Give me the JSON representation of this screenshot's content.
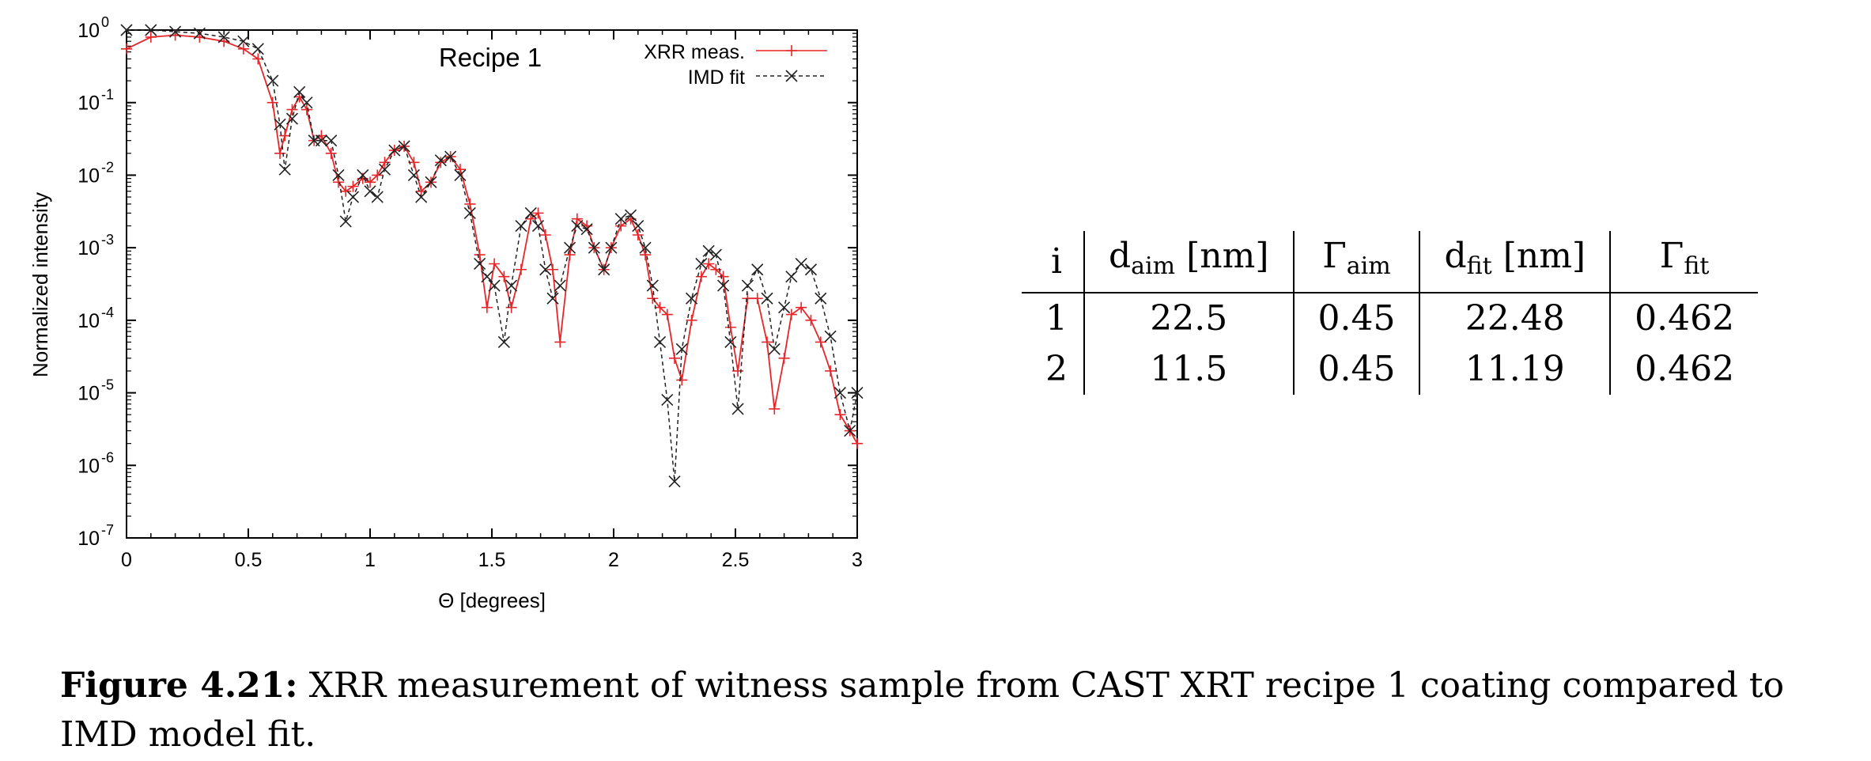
{
  "chart_data": {
    "type": "line",
    "title": "Recipe 1",
    "xlabel": "Θ [degrees]",
    "ylabel": "Normalized intensity",
    "xlim": [
      0,
      3
    ],
    "ylim_log10": [
      -7,
      0
    ],
    "yscale": "log",
    "x_ticks": [
      "0",
      "0.5",
      "1",
      "1.5",
      "2",
      "2.5",
      "3"
    ],
    "y_ticks": [
      {
        "base": "10",
        "exp": "0"
      },
      {
        "base": "10",
        "exp": "-1"
      },
      {
        "base": "10",
        "exp": "-2"
      },
      {
        "base": "10",
        "exp": "-3"
      },
      {
        "base": "10",
        "exp": "-4"
      },
      {
        "base": "10",
        "exp": "-5"
      },
      {
        "base": "10",
        "exp": "-6"
      },
      {
        "base": "10",
        "exp": "-7"
      }
    ],
    "series": [
      {
        "name": "XRR meas.",
        "color": "#e8262a",
        "style": "solid",
        "marker": "+",
        "x": [
          0.0,
          0.1,
          0.2,
          0.3,
          0.4,
          0.48,
          0.54,
          0.6,
          0.63,
          0.65,
          0.68,
          0.71,
          0.74,
          0.77,
          0.8,
          0.84,
          0.87,
          0.9,
          0.93,
          0.97,
          1.0,
          1.03,
          1.06,
          1.1,
          1.14,
          1.18,
          1.21,
          1.25,
          1.29,
          1.33,
          1.37,
          1.41,
          1.45,
          1.48,
          1.51,
          1.55,
          1.58,
          1.62,
          1.66,
          1.69,
          1.72,
          1.75,
          1.78,
          1.82,
          1.85,
          1.89,
          1.92,
          1.96,
          1.99,
          2.03,
          2.07,
          2.1,
          2.13,
          2.16,
          2.19,
          2.22,
          2.25,
          2.28,
          2.32,
          2.36,
          2.39,
          2.42,
          2.45,
          2.48,
          2.51,
          2.55,
          2.59,
          2.63,
          2.66,
          2.7,
          2.73,
          2.77,
          2.81,
          2.85,
          2.89,
          2.93,
          2.97,
          3.0
        ],
        "y": [
          0.55,
          0.8,
          0.85,
          0.8,
          0.7,
          0.55,
          0.4,
          0.1,
          0.02,
          0.035,
          0.08,
          0.12,
          0.08,
          0.03,
          0.035,
          0.02,
          0.008,
          0.006,
          0.007,
          0.009,
          0.008,
          0.01,
          0.015,
          0.022,
          0.025,
          0.015,
          0.006,
          0.008,
          0.015,
          0.018,
          0.012,
          0.004,
          0.0008,
          0.00015,
          0.0006,
          0.0004,
          0.00015,
          0.0005,
          0.0025,
          0.003,
          0.0015,
          0.0005,
          5e-05,
          0.0008,
          0.0025,
          0.002,
          0.001,
          0.0005,
          0.001,
          0.002,
          0.0025,
          0.0015,
          0.0008,
          0.0002,
          0.00015,
          0.00012,
          3e-05,
          1.5e-05,
          0.0001,
          0.0004,
          0.0006,
          0.0005,
          0.0004,
          8e-05,
          2e-05,
          0.0002,
          0.0002,
          5e-05,
          6e-06,
          3e-05,
          0.00012,
          0.00015,
          0.0001,
          5e-05,
          2e-05,
          5e-06,
          3e-06,
          2e-06
        ]
      },
      {
        "name": "IMD fit",
        "color": "#222222",
        "style": "dashed",
        "marker": "x",
        "x": [
          0.0,
          0.1,
          0.2,
          0.3,
          0.4,
          0.48,
          0.54,
          0.6,
          0.63,
          0.65,
          0.68,
          0.71,
          0.74,
          0.77,
          0.8,
          0.84,
          0.87,
          0.9,
          0.93,
          0.97,
          1.0,
          1.03,
          1.06,
          1.1,
          1.14,
          1.18,
          1.21,
          1.25,
          1.29,
          1.33,
          1.37,
          1.41,
          1.45,
          1.48,
          1.51,
          1.55,
          1.58,
          1.62,
          1.66,
          1.69,
          1.72,
          1.75,
          1.78,
          1.82,
          1.85,
          1.89,
          1.92,
          1.96,
          1.99,
          2.03,
          2.07,
          2.1,
          2.13,
          2.16,
          2.19,
          2.22,
          2.25,
          2.28,
          2.32,
          2.36,
          2.39,
          2.42,
          2.45,
          2.48,
          2.51,
          2.55,
          2.59,
          2.63,
          2.66,
          2.7,
          2.73,
          2.77,
          2.81,
          2.85,
          2.89,
          2.93,
          2.97,
          3.0
        ],
        "y": [
          1.0,
          1.0,
          0.95,
          0.9,
          0.8,
          0.7,
          0.55,
          0.2,
          0.05,
          0.012,
          0.06,
          0.14,
          0.1,
          0.03,
          0.03,
          0.03,
          0.01,
          0.0023,
          0.005,
          0.01,
          0.006,
          0.005,
          0.012,
          0.022,
          0.025,
          0.01,
          0.005,
          0.008,
          0.016,
          0.018,
          0.01,
          0.003,
          0.0006,
          0.0004,
          0.0003,
          5e-05,
          0.0003,
          0.002,
          0.003,
          0.002,
          0.0005,
          0.0002,
          0.0003,
          0.001,
          0.002,
          0.0018,
          0.001,
          0.0005,
          0.001,
          0.0025,
          0.0028,
          0.002,
          0.001,
          0.0003,
          5e-05,
          8e-06,
          6e-07,
          4e-05,
          0.0002,
          0.0006,
          0.0009,
          0.0008,
          0.0003,
          5e-05,
          6e-06,
          0.0003,
          0.0005,
          0.0002,
          4e-05,
          0.00015,
          0.0004,
          0.0006,
          0.0005,
          0.0002,
          6e-05,
          1e-05,
          3e-06,
          1e-05
        ]
      }
    ]
  },
  "table": {
    "headers": [
      {
        "main": "i",
        "sub": "",
        "unit": ""
      },
      {
        "main": "d",
        "sub": "aim",
        "unit": "[nm]"
      },
      {
        "main": "Γ",
        "sub": "aim",
        "unit": ""
      },
      {
        "main": "d",
        "sub": "fit",
        "unit": "[nm]"
      },
      {
        "main": "Γ",
        "sub": "fit",
        "unit": ""
      }
    ],
    "rows": [
      [
        "1",
        "22.5",
        "0.45",
        "22.48",
        "0.462"
      ],
      [
        "2",
        "11.5",
        "0.45",
        "11.19",
        "0.462"
      ]
    ]
  },
  "caption": {
    "label": "Figure 4.21:",
    "text": "XRR measurement of witness sample from CAST XRT recipe 1 coating compared to IMD model fit."
  }
}
